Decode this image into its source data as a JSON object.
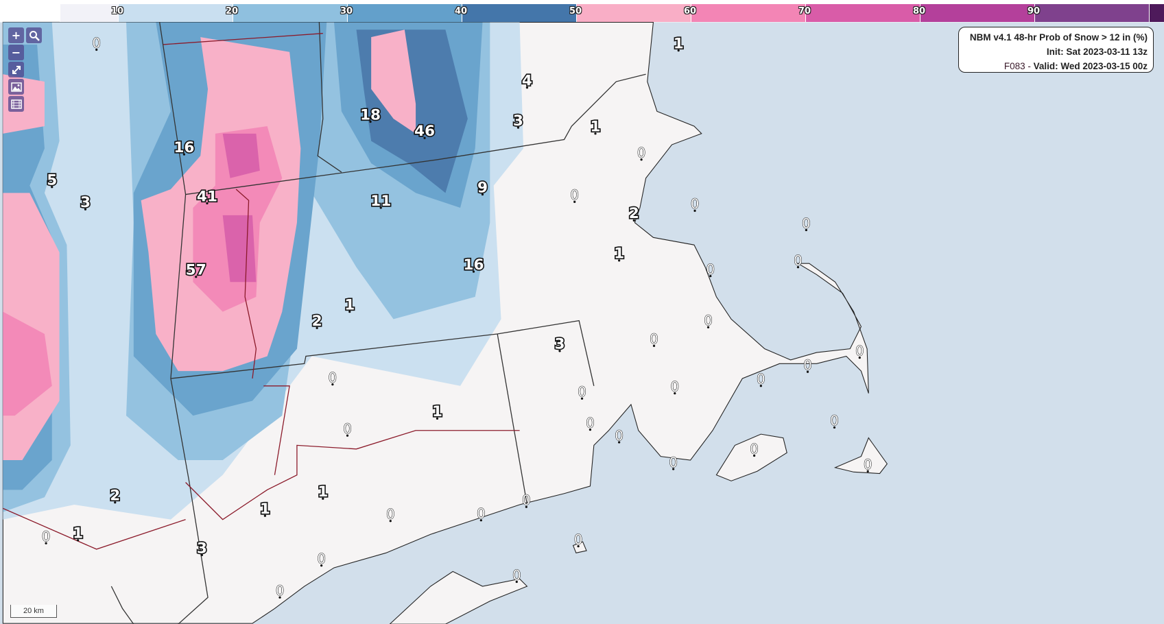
{
  "colorbar": {
    "bins": [
      {
        "label": "",
        "color": "#f2f2f8"
      },
      {
        "label": "10",
        "color": "#c9dff0"
      },
      {
        "label": "20",
        "color": "#8fc0df"
      },
      {
        "label": "30",
        "color": "#63a0cb"
      },
      {
        "label": "40",
        "color": "#4476aa"
      },
      {
        "label": "50",
        "color": "#f9aec6"
      },
      {
        "label": "60",
        "color": "#f385b5"
      },
      {
        "label": "70",
        "color": "#d95ca8"
      },
      {
        "label": "80",
        "color": "#b4409b"
      },
      {
        "label": "90",
        "color": "#7f418d"
      },
      {
        "label": "",
        "color": "#4e1a5b"
      }
    ]
  },
  "toolbar": {
    "zoom_in": "+",
    "zoom_out": "−",
    "icons": [
      "zoom-in-icon",
      "search-icon",
      "zoom-out-icon",
      "fullscreen-icon",
      "image-icon",
      "animation-film-icon"
    ]
  },
  "legend": {
    "title": "NBM v4.1 48-hr Prob of Snow > 12 in (%)",
    "init": "Init: Sat 2023-03-11 13z",
    "forecast_hour": "F083",
    "separator": " - ",
    "valid": "Valid: Wed 2023-03-15 00z"
  },
  "scale_bar": "20 km",
  "map": {
    "ocean_color": "#d2dfeb",
    "land_color": "#f6f4f4",
    "point_values": [
      "0",
      "1",
      "4",
      "18",
      "46",
      "3",
      "1",
      "16",
      "0",
      "5",
      "3",
      "41",
      "11",
      "9",
      "0",
      "0",
      "2",
      "0",
      "1",
      "0",
      "57",
      "16",
      "0",
      "1",
      "2",
      "0",
      "3",
      "0",
      "0",
      "0",
      "0",
      "0",
      "0",
      "0",
      "1",
      "0",
      "0",
      "0",
      "0",
      "0",
      "0",
      "0",
      "2",
      "1",
      "0",
      "1",
      "0",
      "0",
      "1",
      "0",
      "0",
      "3",
      "0",
      "0",
      "0"
    ]
  }
}
